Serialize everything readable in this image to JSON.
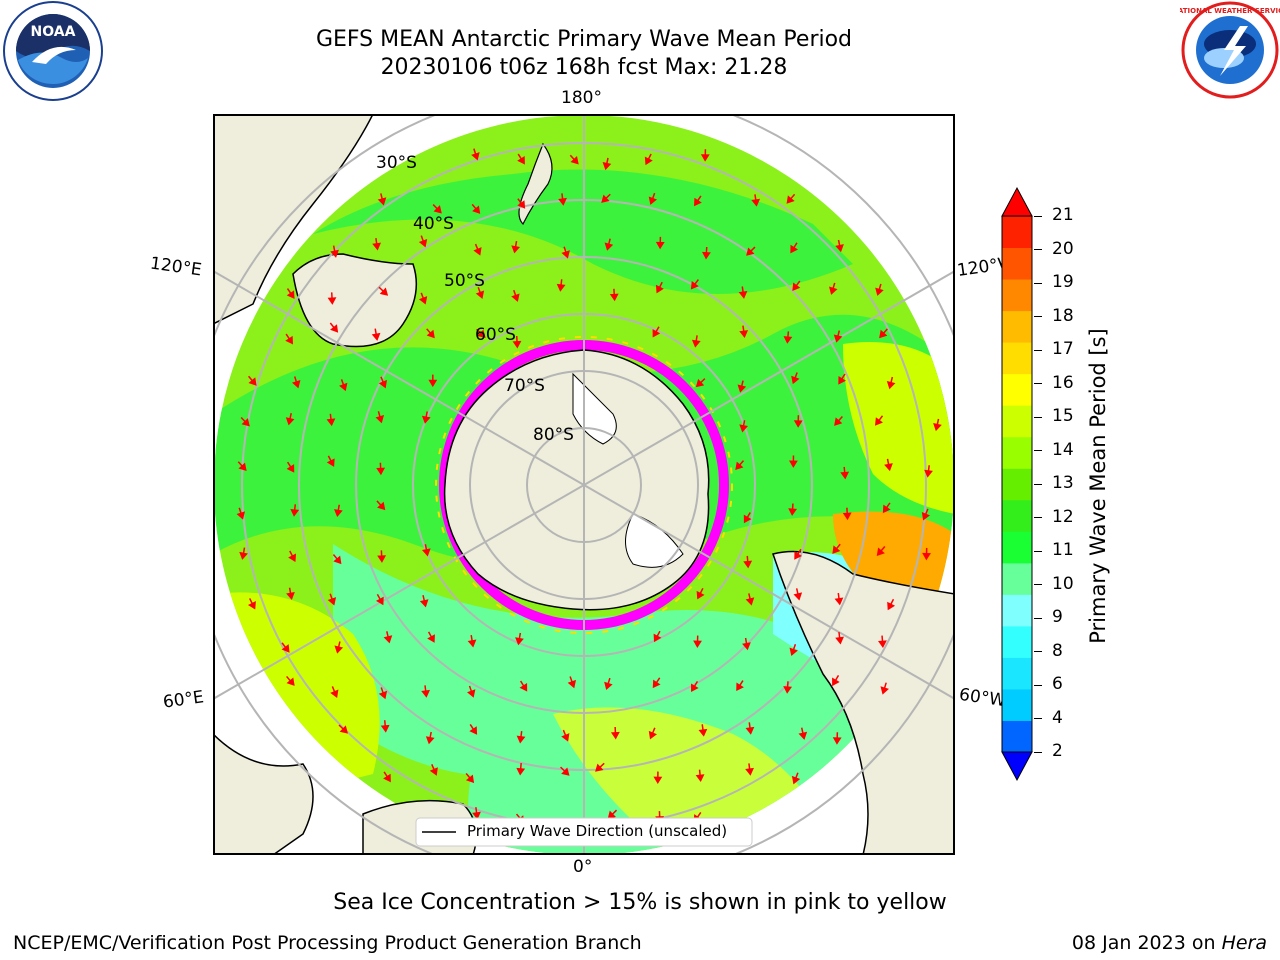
{
  "header": {
    "title_line1": "GEFS MEAN Antarctic Primary Wave Mean Period",
    "title_line2": "20230106 t06z 168h fcst   Max: 21.28"
  },
  "logos": {
    "noaa_text": "NOAA",
    "nws_text": "NATIONAL WEATHER SERVICE"
  },
  "map": {
    "longitude_labels": {
      "top": "180°",
      "bottom": "0°",
      "left_upper": "120°E",
      "left_lower": "60°E",
      "right_upper": "120°W",
      "right_lower": "60°W"
    },
    "latitude_labels": [
      "30°S",
      "40°S",
      "50°S",
      "60°S",
      "70°S",
      "80°S"
    ],
    "legend_label": "Primary Wave Direction (unscaled)",
    "colors": {
      "ocean_deep": "#3df23d",
      "ocean_mid": "#8cf01a",
      "land": "#efeedc",
      "sea_ice": "#ff00ff",
      "arrow": "#ff0000"
    }
  },
  "colorbar": {
    "label": "Primary Wave Mean Period [s]",
    "ticks": [
      "2",
      "4",
      "6",
      "8",
      "9",
      "10",
      "11",
      "12",
      "13",
      "14",
      "15",
      "16",
      "17",
      "18",
      "19",
      "20",
      "21"
    ],
    "colors": [
      "#0000ff",
      "#0066ff",
      "#00ccff",
      "#1ae6ff",
      "#33ffff",
      "#80ffff",
      "#66ff99",
      "#1aff33",
      "#33ee1a",
      "#66ee00",
      "#99ff00",
      "#ccff00",
      "#ffff00",
      "#ffdd00",
      "#ffbb00",
      "#ff8800",
      "#ff5500",
      "#ff2200"
    ],
    "under_color": "#0000ff",
    "over_color": "#ff0000"
  },
  "notes": {
    "sea_ice_note": "Sea Ice Concentration > 15% is shown in pink to yellow"
  },
  "footer": {
    "left": "NCEP/EMC/Verification Post Processing Product Generation Branch",
    "right_prefix": "08 Jan 2023 on",
    "right_machine": "Hera"
  }
}
